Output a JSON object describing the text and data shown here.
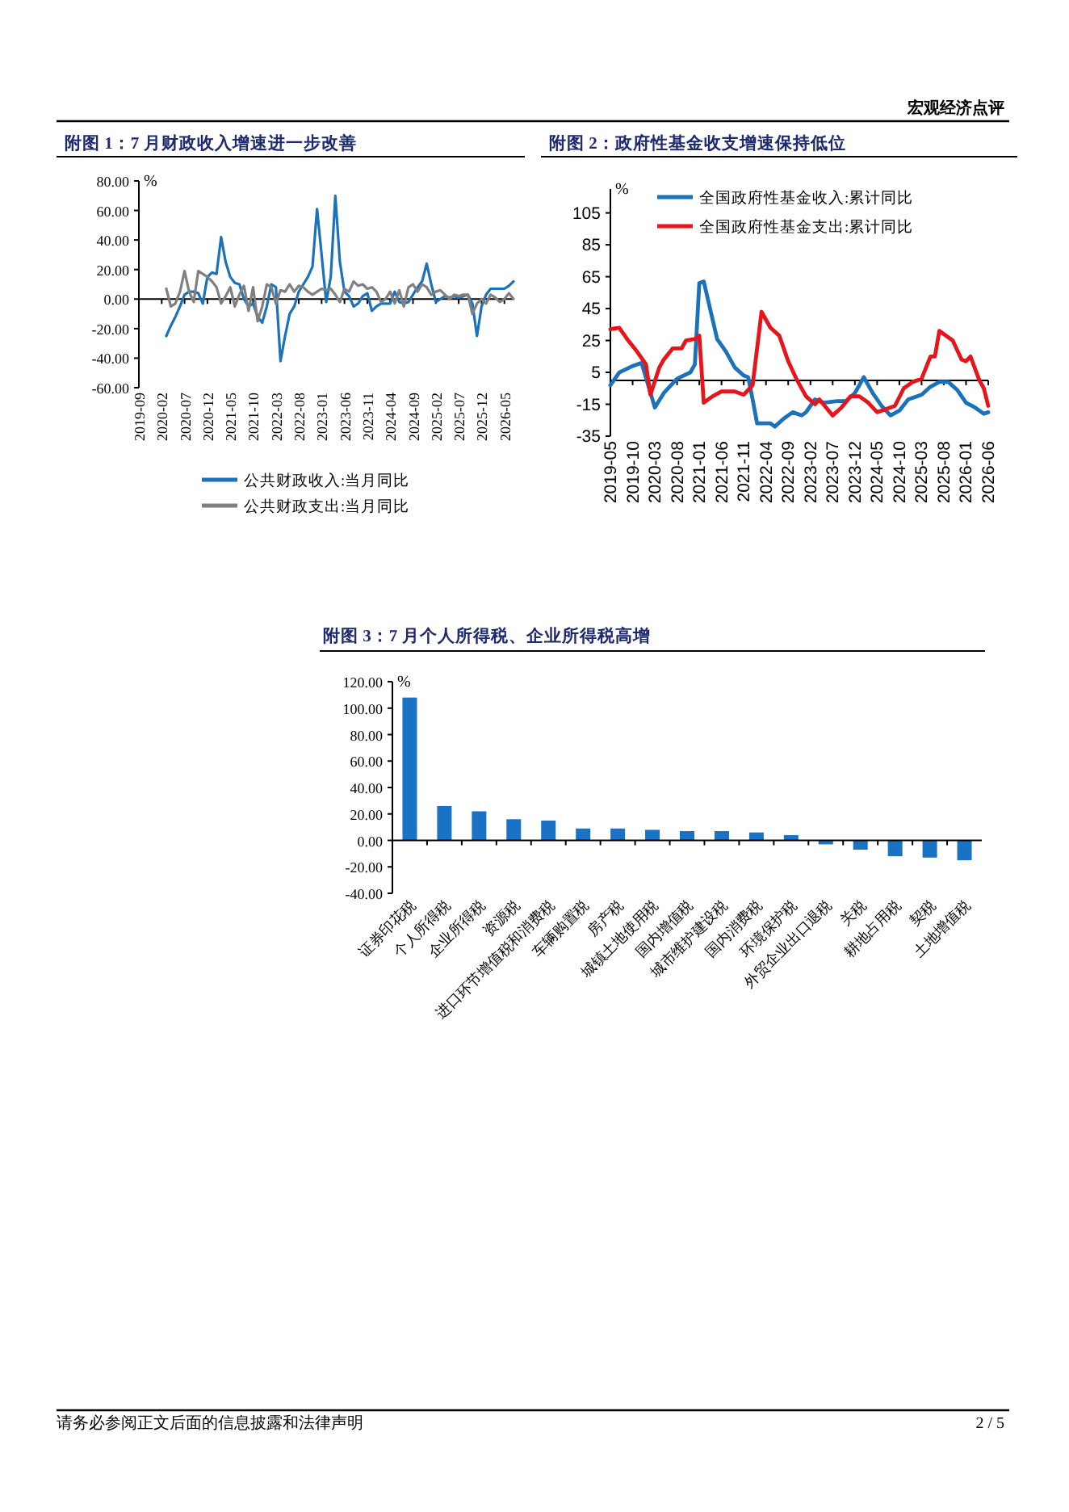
{
  "chart_data": [
    {
      "type": "line",
      "title": "附图 1：7 月财政收入增速进一步改善",
      "ylabel": "%",
      "legend": "bottom",
      "x": [
        "2020-03",
        "2020-04",
        "2020-05",
        "2020-06",
        "2020-07",
        "2020-08",
        "2020-09",
        "2020-10",
        "2020-11",
        "2020-12",
        "2021-01",
        "2021-02",
        "2021-03",
        "2021-04",
        "2021-05",
        "2021-06",
        "2021-07",
        "2021-08",
        "2021-09",
        "2021-10",
        "2021-11",
        "2021-12",
        "2022-01",
        "2022-02",
        "2022-03",
        "2022-04",
        "2022-05",
        "2022-06",
        "2022-07",
        "2022-08",
        "2022-09",
        "2022-10",
        "2022-11",
        "2022-12",
        "2023-01",
        "2023-02",
        "2023-03",
        "2023-04",
        "2023-05",
        "2023-06",
        "2023-07",
        "2023-08",
        "2023-09",
        "2023-10",
        "2023-11",
        "2023-12",
        "2024-01",
        "2024-02",
        "2024-03",
        "2024-04",
        "2024-05",
        "2024-06",
        "2024-07",
        "2024-08",
        "2024-09",
        "2024-10",
        "2024-11",
        "2024-12",
        "2025-01",
        "2025-02",
        "2025-03",
        "2025-04",
        "2025-05",
        "2025-06",
        "2025-07",
        "2025-08",
        "2025-09",
        "2025-10",
        "2025-11",
        "2025-12",
        "2026-01",
        "2026-02",
        "2026-03",
        "2026-04",
        "2026-05",
        "2026-06",
        "2026-07"
      ],
      "series": [
        {
          "name": "公共财政收入:当月同比",
          "color": "#1a72bb",
          "values": [
            -25,
            -18,
            -12,
            -5,
            3,
            5,
            5,
            4,
            -3,
            15,
            18,
            17,
            42,
            25,
            15,
            11,
            10,
            0,
            -5,
            -3,
            -12,
            -16,
            -5,
            10,
            8,
            -42,
            -25,
            -10,
            -5,
            5,
            10,
            15,
            22,
            61,
            30,
            -2,
            15,
            70,
            25,
            5,
            2,
            -5,
            -3,
            2,
            4,
            -8,
            -5,
            -3,
            -3,
            -3,
            5,
            -2,
            -3,
            -2,
            3,
            8,
            12,
            24,
            10,
            -2,
            0,
            2,
            1,
            2,
            1,
            2,
            3,
            -3,
            -25,
            -5,
            3,
            7,
            7,
            7,
            7,
            9,
            12
          ]
        },
        {
          "name": "公共财政支出:当月同比",
          "color": "#808080",
          "values": [
            7,
            -5,
            -3,
            5,
            19,
            5,
            -2,
            19,
            17,
            15,
            12,
            8,
            -3,
            2,
            8,
            -5,
            3,
            9,
            -8,
            8,
            -15,
            -5,
            10,
            8,
            -3,
            6,
            5,
            10,
            5,
            9,
            8,
            5,
            3,
            5,
            7,
            6,
            7,
            3,
            -2,
            7,
            5,
            12,
            9,
            10,
            7,
            8,
            5,
            -2,
            0,
            5,
            -3,
            6,
            -5,
            8,
            10,
            5,
            10,
            8,
            3,
            5,
            6,
            3,
            0,
            3,
            2,
            3,
            3,
            -10,
            -3,
            0,
            -3,
            3,
            1,
            -2,
            0,
            4,
            0
          ]
        }
      ],
      "xlim": [
        "2019-09",
        "2026-07"
      ],
      "xticks": [
        "2019-09",
        "2020-02",
        "2020-07",
        "2020-12",
        "2021-05",
        "2021-10",
        "2022-03",
        "2022-08",
        "2023-01",
        "2023-06",
        "2023-11",
        "2024-04",
        "2024-09",
        "2025-02",
        "2025-07",
        "2025-12",
        "2026-05"
      ],
      "ylim": [
        -60,
        80
      ],
      "yticks": [
        {
          "value": 80,
          "label": "80.00"
        },
        {
          "value": 60,
          "label": "60.00"
        },
        {
          "value": 40,
          "label": "40.00"
        },
        {
          "value": 20,
          "label": "20.00"
        },
        {
          "value": 0,
          "label": "0.00"
        },
        {
          "value": -20,
          "label": "-20.00"
        },
        {
          "value": -40,
          "label": "-40.00"
        },
        {
          "value": -60,
          "label": "-60.00"
        }
      ]
    },
    {
      "type": "line",
      "title": "附图 2：政府性基金收支增速保持低位",
      "ylabel": "%",
      "legend": "top",
      "series": [
        {
          "name": "全国政府性基金收入:累计同比",
          "color": "#1a72bb",
          "x": [
            "2019-05",
            "2019-07",
            "2019-10",
            "2019-12",
            "2020-03",
            "2020-05",
            "2020-08",
            "2020-11",
            "2020-12",
            "2021-01",
            "2021-02",
            "2021-05",
            "2021-07",
            "2021-09",
            "2021-11",
            "2021-12",
            "2022-01",
            "2022-02",
            "2022-05",
            "2022-06",
            "2022-08",
            "2022-10",
            "2022-12",
            "2023-01",
            "2023-03",
            "2023-05",
            "2023-08",
            "2023-10",
            "2023-12",
            "2024-02",
            "2024-04",
            "2024-06",
            "2024-08",
            "2024-10",
            "2024-12",
            "2025-03",
            "2025-05",
            "2025-07",
            "2025-09",
            "2025-11",
            "2026-01",
            "2026-03",
            "2026-05",
            "2026-06"
          ],
          "values": [
            -3,
            5,
            9,
            11,
            -17,
            -8,
            1,
            5,
            10,
            61,
            62,
            26,
            18,
            8,
            3,
            2,
            -12,
            -27,
            -27,
            -29,
            -24,
            -20,
            -22,
            -20,
            -12,
            -14,
            -13,
            -13,
            -8,
            2,
            -8,
            -16,
            -22,
            -19,
            -12,
            -9,
            -4,
            -1,
            -1,
            -6,
            -14,
            -17,
            -21,
            -20
          ]
        },
        {
          "name": "全国政府性基金支出:累计同比",
          "color": "#e8141b",
          "x": [
            "2019-05",
            "2019-07",
            "2019-09",
            "2019-11",
            "2020-01",
            "2020-02",
            "2020-04",
            "2020-05",
            "2020-07",
            "2020-09",
            "2020-10",
            "2020-12",
            "2021-01",
            "2021-02",
            "2021-04",
            "2021-06",
            "2021-09",
            "2021-11",
            "2022-01",
            "2022-03",
            "2022-05",
            "2022-07",
            "2022-09",
            "2022-11",
            "2023-01",
            "2023-03",
            "2023-04",
            "2023-07",
            "2023-09",
            "2023-11",
            "2024-01",
            "2024-03",
            "2024-05",
            "2024-07",
            "2024-09",
            "2024-11",
            "2025-01",
            "2025-03",
            "2025-05",
            "2025-06",
            "2025-07",
            "2025-10",
            "2025-12",
            "2026-01",
            "2026-02",
            "2026-04",
            "2026-05",
            "2026-06"
          ],
          "values": [
            32,
            33,
            25,
            18,
            10,
            -9,
            8,
            13,
            20,
            20,
            25,
            26,
            28,
            -14,
            -10,
            -7,
            -7,
            -9,
            -3,
            43,
            33,
            28,
            12,
            0,
            -10,
            -15,
            -12,
            -22,
            -17,
            -10,
            -10,
            -14,
            -20,
            -18,
            -16,
            -5,
            -1,
            1,
            15,
            15,
            31,
            25,
            13,
            12,
            15,
            0,
            -5,
            -16
          ]
        }
      ],
      "xlim": [
        "2019-05",
        "2026-06"
      ],
      "xticks": [
        "2019-05",
        "2019-10",
        "2020-03",
        "2020-08",
        "2021-01",
        "2021-06",
        "2021-11",
        "2022-04",
        "2022-09",
        "2023-02",
        "2023-07",
        "2023-12",
        "2024-05",
        "2024-10",
        "2025-03",
        "2025-08",
        "2026-01",
        "2026-06"
      ],
      "ylim": [
        -35,
        120
      ],
      "yticks": [
        -35,
        -15,
        5,
        25,
        45,
        65,
        85,
        105
      ]
    },
    {
      "type": "bar",
      "title": "附图 3：7 月个人所得税、企业所得税高增",
      "ylabel": "%",
      "color": "#1a72c4",
      "categories": [
        "证券印花税",
        "个人所得税",
        "企业所得税",
        "资源税",
        "进口环节增值税和消费税",
        "车辆购置税",
        "房产税",
        "城镇土地使用税",
        "国内增值税",
        "城市维护建设税",
        "国内消费税",
        "环境保护税",
        "外贸企业出口退税",
        "关税",
        "耕地占用税",
        "契税",
        "土地增值税"
      ],
      "values": [
        108,
        26,
        22,
        16,
        15,
        9,
        9,
        8,
        7,
        7,
        6,
        4,
        -3,
        -7,
        -12,
        -13,
        -15
      ],
      "ylim": [
        -40,
        120
      ],
      "yticks": [
        {
          "value": 120,
          "label": "120.00"
        },
        {
          "value": 100,
          "label": "100.00"
        },
        {
          "value": 80,
          "label": "80.00"
        },
        {
          "value": 60,
          "label": "60.00"
        },
        {
          "value": 40,
          "label": "40.00"
        },
        {
          "value": 20,
          "label": "20.00"
        },
        {
          "value": 0,
          "label": "0.00"
        },
        {
          "value": -20,
          "label": "-20.00"
        },
        {
          "value": -40,
          "label": "-40.00"
        }
      ]
    },
    {
      "type": "other",
      "annotations": [
        "宏观经济点评",
        "请务必参阅正文后面的信息披露和法律声明",
        "2 / 5"
      ]
    }
  ]
}
